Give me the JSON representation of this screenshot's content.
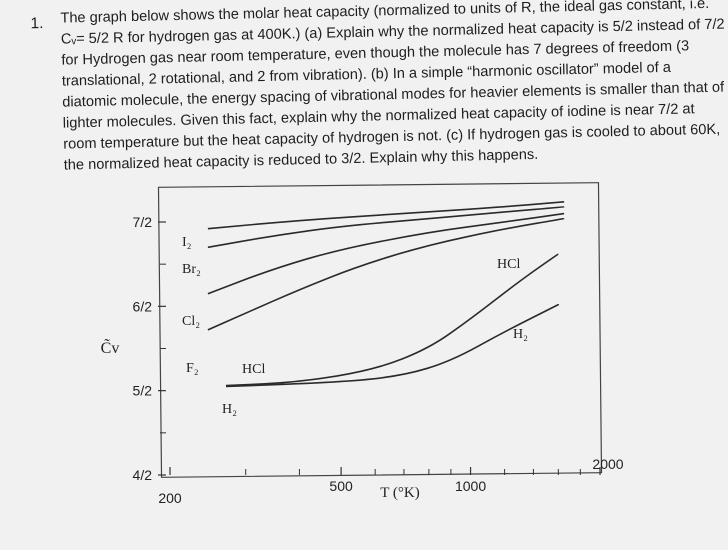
{
  "question": {
    "number": "1.",
    "lines": [
      "The graph below shows the molar heat capacity (normalized to units of R, the ideal gas constant, i.e.",
      "Cᵥ= 5/2 R for hydrogen gas at 400K.) (a) Explain why the normalized heat capacity is 5/2 instead of 7/2",
      "for Hydrogen gas near room temperature, even though the molecule has 7 degrees of freedom (3",
      "translational, 2 rotational, and 2 from vibration). (b) In a simple “harmonic oscillator” model of a",
      "diatomic molecule, the energy spacing of vibrational modes for heavier elements is smaller than that of",
      "lighter molecules.   Given this fact, explain why the normalized heat capacity of iodine is near 7/2 at",
      "room temperature but the heat capacity of hydrogen is not. (c) If hydrogen gas is cooled to about 60K,",
      "the normalized heat capacity is reduced to 3/2. Explain why this happens."
    ]
  },
  "chart_data": {
    "type": "line",
    "xscale": "log",
    "xlabel": "T (°K)",
    "ylabel": "C̃v",
    "xlim": [
      200,
      2000
    ],
    "ylim": [
      4,
      7.4
    ],
    "x_ticks": [
      "200",
      "500",
      "1000",
      "2000"
    ],
    "y_ticks": [
      "4/2",
      "5/2",
      "6/2",
      "7/2"
    ],
    "series": [
      {
        "name": "I₂",
        "x": [
          245,
          400,
          700,
          1200,
          1650
        ],
        "y": [
          6.92,
          7.02,
          7.1,
          7.18,
          7.24
        ]
      },
      {
        "name": "Br₂",
        "x": [
          245,
          350,
          500,
          800,
          1200,
          1650
        ],
        "y": [
          6.7,
          6.84,
          6.95,
          7.04,
          7.12,
          7.18
        ]
      },
      {
        "name": "Cl₂",
        "x": [
          245,
          350,
          500,
          800,
          1200,
          1650
        ],
        "y": [
          6.15,
          6.45,
          6.68,
          6.88,
          7.0,
          7.1
        ]
      },
      {
        "name": "F₂",
        "x": [
          245,
          300,
          400,
          550,
          800,
          1200,
          1650
        ],
        "y": [
          5.72,
          5.92,
          6.2,
          6.48,
          6.73,
          6.92,
          7.04
        ]
      },
      {
        "name": "HCl",
        "x": [
          270,
          400,
          600,
          800,
          1000,
          1300,
          1600
        ],
        "y": [
          5.06,
          5.1,
          5.25,
          5.5,
          5.85,
          6.3,
          6.62
        ]
      },
      {
        "name": "H₂",
        "x": [
          270,
          500,
          700,
          900,
          1200,
          1600
        ],
        "y": [
          5.05,
          5.1,
          5.18,
          5.35,
          5.7,
          6.02
        ]
      }
    ],
    "labels": [
      "I₂",
      "Br₂",
      "Cl₂",
      "F₂",
      "HCl",
      "H₂",
      "HCl",
      "H₂"
    ]
  }
}
